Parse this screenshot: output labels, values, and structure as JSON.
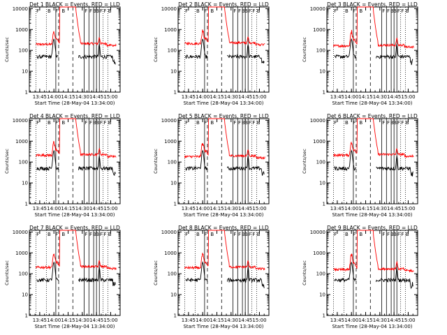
{
  "figure": {
    "ylabel": "Counts/sec",
    "xlabel": "Start Time (28-May-04 13:34:00)",
    "x_ticks": [
      "13:45",
      "14:00",
      "14:15",
      "14:30",
      "14:45",
      "15:00"
    ],
    "y_ticks": [
      "1",
      "10",
      "100",
      "1000",
      "10000"
    ],
    "colors": {
      "events": "#000000",
      "lld": "#ff0000",
      "axes": "#000000"
    }
  },
  "chart_data": [
    {
      "type": "line",
      "title": "Det 1 BLACK = Events, RED = LLD",
      "region_labels": [
        "F",
        "B",
        "F",
        "B",
        "F",
        "F",
        "B",
        "B",
        "F",
        "F",
        "B"
      ],
      "x_range": [
        "13:34",
        "15:10"
      ],
      "yscale": "log",
      "ylim": [
        1,
        12000
      ],
      "series": [
        {
          "name": "Events",
          "color": "#000000"
        },
        {
          "name": "LLD",
          "color": "#ff0000"
        }
      ],
      "event_markers": [
        "13:41",
        "13:52",
        "14:02",
        "14:05",
        "14:20",
        "14:32",
        "14:37",
        "14:42",
        "14:45",
        "14:48",
        "14:52",
        "14:57"
      ]
    },
    {
      "type": "line",
      "title": "Det 2 BLACK = Events, RED = LLD",
      "region_labels": [
        "F",
        "B",
        "F",
        "B",
        "F",
        "F",
        "B",
        "B",
        "F",
        "F",
        "B"
      ],
      "x_range": [
        "13:34",
        "15:10"
      ],
      "yscale": "log",
      "ylim": [
        1,
        12000
      ],
      "series": [
        {
          "name": "Events",
          "color": "#000000"
        },
        {
          "name": "LLD",
          "color": "#ff0000"
        }
      ],
      "event_markers": [
        "13:41",
        "13:52",
        "14:02",
        "14:05",
        "14:20",
        "14:32",
        "14:37",
        "14:42",
        "14:45",
        "14:48",
        "14:52",
        "14:57"
      ]
    },
    {
      "type": "line",
      "title": "Det 3 BLACK = Events, RED = LLD",
      "region_labels": [
        "F",
        "B",
        "F",
        "B",
        "F",
        "F",
        "B",
        "B",
        "F",
        "F",
        "B"
      ],
      "x_range": [
        "13:34",
        "15:10"
      ],
      "yscale": "log",
      "ylim": [
        1,
        12000
      ],
      "series": [
        {
          "name": "Events",
          "color": "#000000"
        },
        {
          "name": "LLD",
          "color": "#ff0000"
        }
      ],
      "event_markers": [
        "13:41",
        "13:52",
        "14:02",
        "14:05",
        "14:20",
        "14:32",
        "14:37",
        "14:42",
        "14:45",
        "14:48",
        "14:52",
        "14:57"
      ]
    },
    {
      "type": "line",
      "title": "Det 4 BLACK = Events, RED = LLD",
      "region_labels": [
        "F",
        "B",
        "F",
        "B",
        "F",
        "F",
        "B",
        "B",
        "F",
        "F",
        "B"
      ],
      "x_range": [
        "13:34",
        "15:10"
      ],
      "yscale": "log",
      "ylim": [
        1,
        12000
      ],
      "series": [
        {
          "name": "Events",
          "color": "#000000"
        },
        {
          "name": "LLD",
          "color": "#ff0000"
        }
      ],
      "event_markers": [
        "13:41",
        "13:52",
        "14:02",
        "14:05",
        "14:20",
        "14:32",
        "14:37",
        "14:42",
        "14:45",
        "14:48",
        "14:52",
        "14:57"
      ]
    },
    {
      "type": "line",
      "title": "Det 5 BLACK = Events, RED = LLD",
      "region_labels": [
        "F",
        "B",
        "F",
        "B",
        "F",
        "F",
        "B",
        "B",
        "F",
        "F",
        "B"
      ],
      "x_range": [
        "13:34",
        "15:10"
      ],
      "yscale": "log",
      "ylim": [
        1,
        12000
      ],
      "series": [
        {
          "name": "Events",
          "color": "#000000"
        },
        {
          "name": "LLD",
          "color": "#ff0000"
        }
      ],
      "event_markers": [
        "13:41",
        "13:52",
        "14:02",
        "14:05",
        "14:20",
        "14:32",
        "14:37",
        "14:42",
        "14:45",
        "14:48",
        "14:52",
        "14:57"
      ]
    },
    {
      "type": "line",
      "title": "Det 6 BLACK = Events, RED = LLD",
      "region_labels": [
        "F",
        "B",
        "F",
        "B",
        "F",
        "F",
        "B",
        "B",
        "F",
        "F",
        "B"
      ],
      "x_range": [
        "13:34",
        "15:10"
      ],
      "yscale": "log",
      "ylim": [
        1,
        12000
      ],
      "series": [
        {
          "name": "Events",
          "color": "#000000"
        },
        {
          "name": "LLD",
          "color": "#ff0000"
        }
      ],
      "event_markers": [
        "13:41",
        "13:52",
        "14:02",
        "14:05",
        "14:20",
        "14:32",
        "14:37",
        "14:42",
        "14:45",
        "14:48",
        "14:52",
        "14:57"
      ]
    },
    {
      "type": "line",
      "title": "Det 7 BLACK = Events, RED = LLD",
      "region_labels": [
        "F",
        "B",
        "F",
        "B",
        "F",
        "F",
        "B",
        "B",
        "F",
        "F",
        "B"
      ],
      "x_range": [
        "13:34",
        "15:10"
      ],
      "yscale": "log",
      "ylim": [
        1,
        12000
      ],
      "series": [
        {
          "name": "Events",
          "color": "#000000"
        },
        {
          "name": "LLD",
          "color": "#ff0000"
        }
      ],
      "event_markers": [
        "13:41",
        "13:52",
        "14:02",
        "14:05",
        "14:20",
        "14:32",
        "14:37",
        "14:42",
        "14:45",
        "14:48",
        "14:52",
        "14:57"
      ]
    },
    {
      "type": "line",
      "title": "Det 8 BLACK = Events, RED = LLD",
      "region_labels": [
        "F",
        "B",
        "F",
        "B",
        "F",
        "F",
        "B",
        "B",
        "F",
        "F",
        "B"
      ],
      "x_range": [
        "13:34",
        "15:10"
      ],
      "yscale": "log",
      "ylim": [
        1,
        12000
      ],
      "series": [
        {
          "name": "Events",
          "color": "#000000"
        },
        {
          "name": "LLD",
          "color": "#ff0000"
        }
      ],
      "event_markers": [
        "13:41",
        "13:52",
        "14:02",
        "14:05",
        "14:20",
        "14:32",
        "14:37",
        "14:42",
        "14:45",
        "14:48",
        "14:52",
        "14:57"
      ]
    },
    {
      "type": "line",
      "title": "Det 9 BLACK = Events, RED = LLD",
      "region_labels": [
        "F",
        "B",
        "F",
        "B",
        "F",
        "F",
        "B",
        "B",
        "F",
        "F",
        "B"
      ],
      "x_range": [
        "13:34",
        "15:10"
      ],
      "yscale": "log",
      "ylim": [
        1,
        12000
      ],
      "series": [
        {
          "name": "Events",
          "color": "#000000"
        },
        {
          "name": "LLD",
          "color": "#ff0000"
        }
      ],
      "event_markers": [
        "13:41",
        "13:52",
        "14:02",
        "14:05",
        "14:20",
        "14:32",
        "14:37",
        "14:42",
        "14:45",
        "14:48",
        "14:52",
        "14:57"
      ]
    }
  ]
}
